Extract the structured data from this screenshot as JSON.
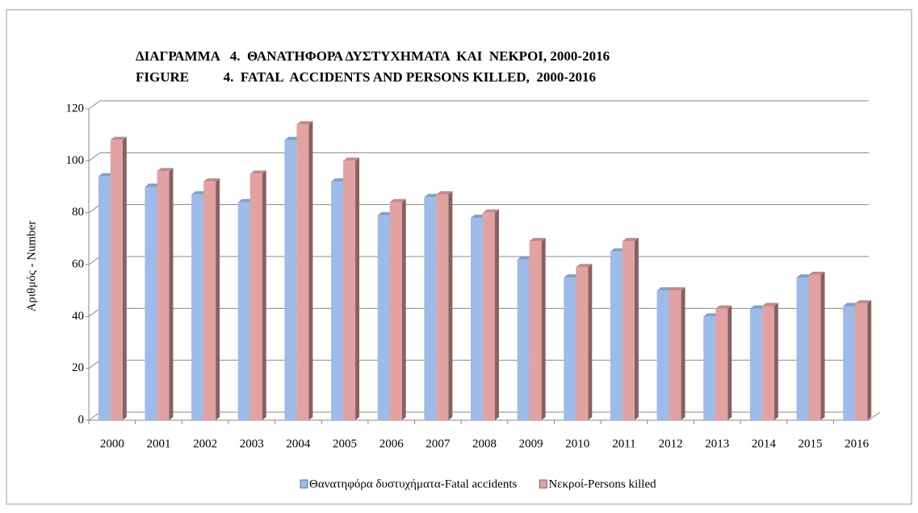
{
  "chart_data": {
    "type": "bar",
    "title": [
      "ΔΙΑΓΡΑΜΜΑ   4.  ΘΑΝΑΤΗΦΟΡΑ ΔΥΣΤΥΧΗΜΑΤΑ  ΚΑΙ  ΝΕΚΡΟΙ, 2000-2016",
      "FIGURE          4.  FATAL  ACCIDENTS AND PERSONS KILLED,  2000-2016"
    ],
    "ylabel": "Αριθμός - Number",
    "categories": [
      "2000",
      "2001",
      "2002",
      "2003",
      "2004",
      "2005",
      "2006",
      "2007",
      "2008",
      "2009",
      "2010",
      "2011",
      "2012",
      "2013",
      "2014",
      "2015",
      "2016"
    ],
    "series": [
      {
        "name": "Θανατηφόρα δυστυχήματα-Fatal accidents",
        "color": "#9dbbe8",
        "values": [
          94,
          90,
          87,
          84,
          108,
          92,
          79,
          86,
          78,
          62,
          55,
          65,
          50,
          40,
          43,
          55,
          44
        ]
      },
      {
        "name": "Νεκροί-Persons killed",
        "color": "#e3a2a2",
        "values": [
          108,
          96,
          92,
          95,
          114,
          100,
          84,
          87,
          80,
          69,
          59,
          69,
          50,
          43,
          44,
          56,
          45
        ]
      }
    ],
    "ylim": [
      0,
      120
    ],
    "yticks": [
      0,
      20,
      40,
      60,
      80,
      100,
      120
    ],
    "grid": true,
    "legend": "bottom"
  }
}
